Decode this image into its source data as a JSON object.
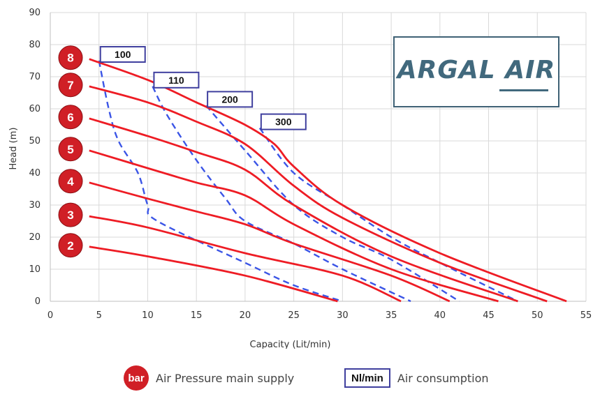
{
  "chart_data": {
    "type": "line",
    "title": "",
    "xlabel": "Capacity (Lit/min)",
    "ylabel": "Head (m)",
    "xlim": [
      0,
      55
    ],
    "ylim": [
      0,
      90
    ],
    "xticks": [
      "0",
      "5",
      "10",
      "15",
      "20",
      "25",
      "30",
      "35",
      "40",
      "45",
      "50",
      "55"
    ],
    "yticks": [
      "0",
      "10",
      "20",
      "30",
      "40",
      "50",
      "60",
      "70",
      "80",
      "90"
    ],
    "grid": true,
    "pressure_series": [
      {
        "name": "2",
        "points": [
          [
            4,
            17
          ],
          [
            10,
            14
          ],
          [
            20,
            8
          ],
          [
            29.5,
            0
          ]
        ]
      },
      {
        "name": "3",
        "points": [
          [
            4,
            26.5
          ],
          [
            10,
            23
          ],
          [
            20,
            15
          ],
          [
            30,
            8
          ],
          [
            36,
            0
          ]
        ]
      },
      {
        "name": "4",
        "points": [
          [
            4,
            37
          ],
          [
            10,
            32
          ],
          [
            15,
            28
          ],
          [
            20,
            24
          ],
          [
            25,
            18
          ],
          [
            35,
            8
          ],
          [
            41,
            0
          ]
        ]
      },
      {
        "name": "5",
        "points": [
          [
            4,
            47
          ],
          [
            10,
            41.5
          ],
          [
            15,
            37
          ],
          [
            20,
            33
          ],
          [
            25,
            24
          ],
          [
            35,
            10
          ],
          [
            46,
            0
          ]
        ]
      },
      {
        "name": "6",
        "points": [
          [
            4,
            57
          ],
          [
            10,
            51.5
          ],
          [
            15,
            46.5
          ],
          [
            20,
            41
          ],
          [
            25,
            30
          ],
          [
            35,
            14
          ],
          [
            48,
            0
          ]
        ]
      },
      {
        "name": "7",
        "points": [
          [
            4,
            67
          ],
          [
            10,
            62
          ],
          [
            15,
            56
          ],
          [
            20,
            49
          ],
          [
            25,
            36
          ],
          [
            30,
            26
          ],
          [
            40,
            12
          ],
          [
            51,
            0
          ]
        ]
      },
      {
        "name": "8",
        "points": [
          [
            4,
            75.5
          ],
          [
            10,
            69
          ],
          [
            15,
            62
          ],
          [
            20,
            55
          ],
          [
            23,
            49
          ],
          [
            25,
            42
          ],
          [
            30,
            30
          ],
          [
            40,
            15
          ],
          [
            53,
            0
          ]
        ]
      }
    ],
    "air_series": [
      {
        "name": "100",
        "points": [
          [
            5,
            75
          ],
          [
            6,
            60
          ],
          [
            7,
            50
          ],
          [
            9,
            40
          ],
          [
            10,
            30
          ],
          [
            11,
            25
          ],
          [
            20,
            12
          ],
          [
            25,
            5
          ],
          [
            30,
            0
          ]
        ]
      },
      {
        "name": "110",
        "points": [
          [
            10.5,
            67
          ],
          [
            12,
            58
          ],
          [
            15,
            44
          ],
          [
            18,
            32
          ],
          [
            20,
            25
          ],
          [
            25,
            18
          ],
          [
            30,
            10
          ],
          [
            37,
            0
          ]
        ]
      },
      {
        "name": "200",
        "points": [
          [
            16,
            61
          ],
          [
            20,
            47
          ],
          [
            25,
            30
          ],
          [
            30,
            20
          ],
          [
            35,
            13
          ],
          [
            42,
            0
          ]
        ]
      },
      {
        "name": "300",
        "points": [
          [
            21.5,
            54
          ],
          [
            25,
            40
          ],
          [
            30,
            30
          ],
          [
            35,
            20
          ],
          [
            40,
            12
          ],
          [
            48,
            0
          ]
        ]
      }
    ]
  },
  "logo": {
    "text": "ARGAL AIR"
  },
  "legend": {
    "bar_badge": "bar",
    "bar_label": "Air Pressure main supply",
    "nl_badge": "Nl/min",
    "nl_label": "Air consumption"
  },
  "colors": {
    "pressure_line": "#ee1c24",
    "air_line": "#3b55e6",
    "badge_fill": "#d01f26",
    "nl_border": "#3f3f9e"
  }
}
